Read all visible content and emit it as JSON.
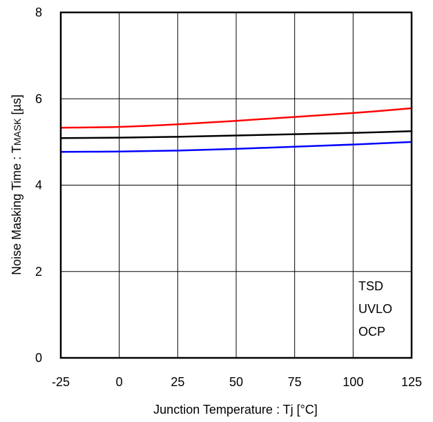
{
  "chart_data": {
    "type": "line",
    "xlabel": "Junction Temperature : Tj [°C]",
    "ylabel_main": "Noise Masking Time : T",
    "ylabel_sub": "MASK",
    "ylabel_unit": " [µs]",
    "xlim": [
      -25,
      125
    ],
    "ylim": [
      0,
      8
    ],
    "x_ticks": [
      -25,
      0,
      25,
      50,
      75,
      100,
      125
    ],
    "y_ticks": [
      0,
      2,
      4,
      6,
      8
    ],
    "grid": true,
    "x": [
      -25,
      0,
      25,
      50,
      75,
      100,
      125
    ],
    "series": [
      {
        "color": "#ff0000",
        "values": [
          5.33,
          5.35,
          5.41,
          5.49,
          5.58,
          5.67,
          5.78
        ]
      },
      {
        "color": "#000000",
        "values": [
          5.09,
          5.1,
          5.12,
          5.15,
          5.18,
          5.21,
          5.25
        ]
      },
      {
        "color": "#0000ff",
        "values": [
          4.77,
          4.78,
          4.8,
          4.84,
          4.89,
          4.94,
          5.0
        ]
      }
    ],
    "annotations": [
      "TSD",
      "UVLO",
      "OCP"
    ]
  }
}
